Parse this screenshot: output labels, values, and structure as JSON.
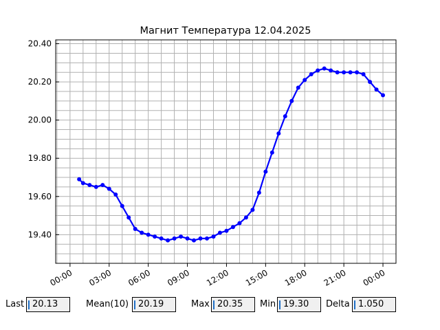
{
  "chart_data": {
    "type": "line",
    "title": "Магнит Температура 12.04.2025",
    "xlabel": "",
    "ylabel": "",
    "ylim": [
      19.25,
      20.42
    ],
    "xlim_hours": [
      -1.1,
      25.0
    ],
    "yticks": [
      "19.40",
      "19.60",
      "19.80",
      "20.00",
      "20.20",
      "20.40"
    ],
    "ytick_values": [
      19.4,
      19.6,
      19.8,
      20.0,
      20.2,
      20.4
    ],
    "xticks": [
      "00:00",
      "03:00",
      "06:00",
      "09:00",
      "12:00",
      "15:00",
      "18:00",
      "21:00",
      "00:00"
    ],
    "xtick_hours": [
      0,
      3,
      6,
      9,
      12,
      15,
      18,
      21,
      24
    ],
    "grid": true,
    "series_color": "#0000ff",
    "series": [
      {
        "x_hours": [
          0.7,
          1.0,
          1.5,
          2.0,
          2.5,
          3.0,
          3.5,
          4.0,
          4.5,
          5.0,
          5.5,
          6.0,
          6.5,
          7.0,
          7.5,
          8.0,
          8.5,
          9.0,
          9.5,
          10.0,
          10.5,
          11.0,
          11.5,
          12.0,
          12.5,
          13.0,
          13.5,
          14.0,
          14.5,
          15.0,
          15.5,
          16.0,
          16.5,
          17.0,
          17.5,
          18.0,
          18.5,
          19.0,
          19.5,
          20.0,
          20.5,
          21.0,
          21.5,
          22.0,
          22.5,
          23.0,
          23.5,
          24.0
        ],
        "values": [
          19.69,
          19.67,
          19.66,
          19.65,
          19.66,
          19.64,
          19.61,
          19.55,
          19.49,
          19.43,
          19.41,
          19.4,
          19.39,
          19.38,
          19.37,
          19.38,
          19.39,
          19.38,
          19.37,
          19.38,
          19.38,
          19.39,
          19.41,
          19.42,
          19.44,
          19.46,
          19.49,
          19.53,
          19.62,
          19.73,
          19.83,
          19.93,
          20.02,
          20.1,
          20.17,
          20.21,
          20.24,
          20.26,
          20.27,
          20.26,
          20.25,
          20.25,
          20.25,
          20.25,
          20.24,
          20.2,
          20.16,
          20.13
        ]
      }
    ]
  },
  "stats": {
    "last_label": "Last",
    "last_value": "20.13",
    "mean_label": "Mean(10)",
    "mean_value": "20.19",
    "max_label": "Max",
    "max_value": "20.35",
    "min_label": "Min",
    "min_value": "19.30",
    "delta_label": "Delta",
    "delta_value": "1.050"
  }
}
